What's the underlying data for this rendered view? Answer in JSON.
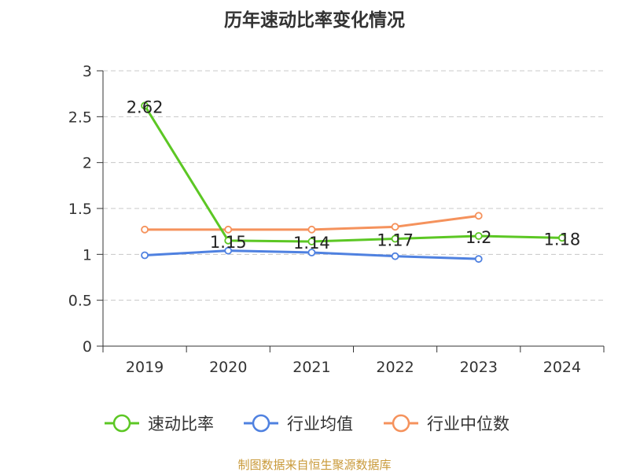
{
  "chart_data": {
    "type": "line",
    "title": "历年速动比率变化情况",
    "categories": [
      "2019",
      "2020",
      "2021",
      "2022",
      "2023",
      "2024"
    ],
    "y_ticks": [
      "0",
      "0.5",
      "1",
      "1.5",
      "2",
      "2.5",
      "3"
    ],
    "ylim": [
      0,
      3
    ],
    "grid": true,
    "legend_position": "bottom",
    "series": [
      {
        "name": "速动比率",
        "color": "#5cc724",
        "values": [
          2.62,
          1.15,
          1.14,
          1.17,
          1.2,
          1.18
        ],
        "data_labels": [
          "2.62",
          "1.15",
          "1.14",
          "1.17",
          "1.2",
          "1.18"
        ]
      },
      {
        "name": "行业均值",
        "color": "#4f81e0",
        "values": [
          0.99,
          1.04,
          1.02,
          0.98,
          0.95,
          null
        ]
      },
      {
        "name": "行业中位数",
        "color": "#f5925c",
        "values": [
          1.27,
          1.27,
          1.27,
          1.3,
          1.42,
          null
        ]
      }
    ],
    "source": "制图数据来自恒生聚源数据库"
  }
}
